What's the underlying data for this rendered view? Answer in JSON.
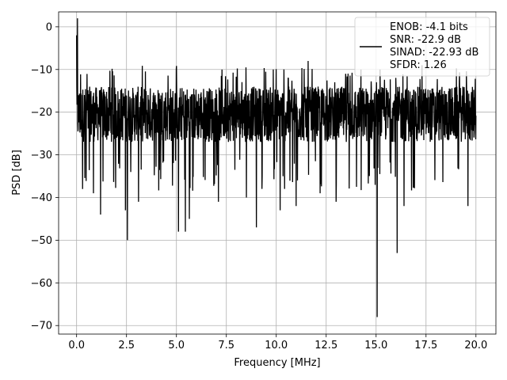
{
  "chart_data": {
    "type": "line",
    "xlabel": "Frequency [MHz]",
    "ylabel": "PSD [dB]",
    "xlim": [
      -0.9,
      21.0
    ],
    "ylim": [
      -72,
      3.5
    ],
    "xticks": [
      0.0,
      2.5,
      5.0,
      7.5,
      10.0,
      12.5,
      15.0,
      17.5,
      20.0
    ],
    "xtick_labels": [
      "0.0",
      "2.5",
      "5.0",
      "7.5",
      "10.0",
      "12.5",
      "15.0",
      "17.5",
      "20.0"
    ],
    "yticks": [
      0,
      -10,
      -20,
      -30,
      -40,
      -50,
      -60,
      -70
    ],
    "ytick_labels": [
      "0",
      "−10",
      "−20",
      "−30",
      "−40",
      "−50",
      "−60",
      "−70"
    ],
    "grid": true,
    "legend_position": "top-right",
    "series": [
      {
        "name": "ENOB: -4.1 bits\nSNR: -22.9 dB\nSINAD: -22.93 dB\nSFDR: 1.26",
        "color": "#000000",
        "x_range": [
          0.0,
          20.0
        ],
        "typical_range": [
          -27,
          -14
        ],
        "peaks": [
          {
            "x": 0.0,
            "y": -2
          },
          {
            "x": 0.05,
            "y": 2
          },
          {
            "x": 9.85,
            "y": -10
          },
          {
            "x": 11.6,
            "y": -8
          },
          {
            "x": 15.2,
            "y": -10
          },
          {
            "x": 17.3,
            "y": -9
          }
        ],
        "dips": [
          {
            "x": 0.3,
            "y": -38
          },
          {
            "x": 0.85,
            "y": -39
          },
          {
            "x": 1.2,
            "y": -44
          },
          {
            "x": 2.45,
            "y": -43
          },
          {
            "x": 2.55,
            "y": -50
          },
          {
            "x": 3.1,
            "y": -41
          },
          {
            "x": 5.1,
            "y": -48
          },
          {
            "x": 5.45,
            "y": -48
          },
          {
            "x": 5.65,
            "y": -45
          },
          {
            "x": 7.1,
            "y": -41
          },
          {
            "x": 8.5,
            "y": -40
          },
          {
            "x": 9.0,
            "y": -47
          },
          {
            "x": 10.2,
            "y": -43
          },
          {
            "x": 11.0,
            "y": -42
          },
          {
            "x": 12.2,
            "y": -39
          },
          {
            "x": 13.0,
            "y": -41
          },
          {
            "x": 15.05,
            "y": -68
          },
          {
            "x": 16.05,
            "y": -53
          },
          {
            "x": 16.4,
            "y": -42
          },
          {
            "x": 19.6,
            "y": -42
          }
        ]
      }
    ]
  }
}
